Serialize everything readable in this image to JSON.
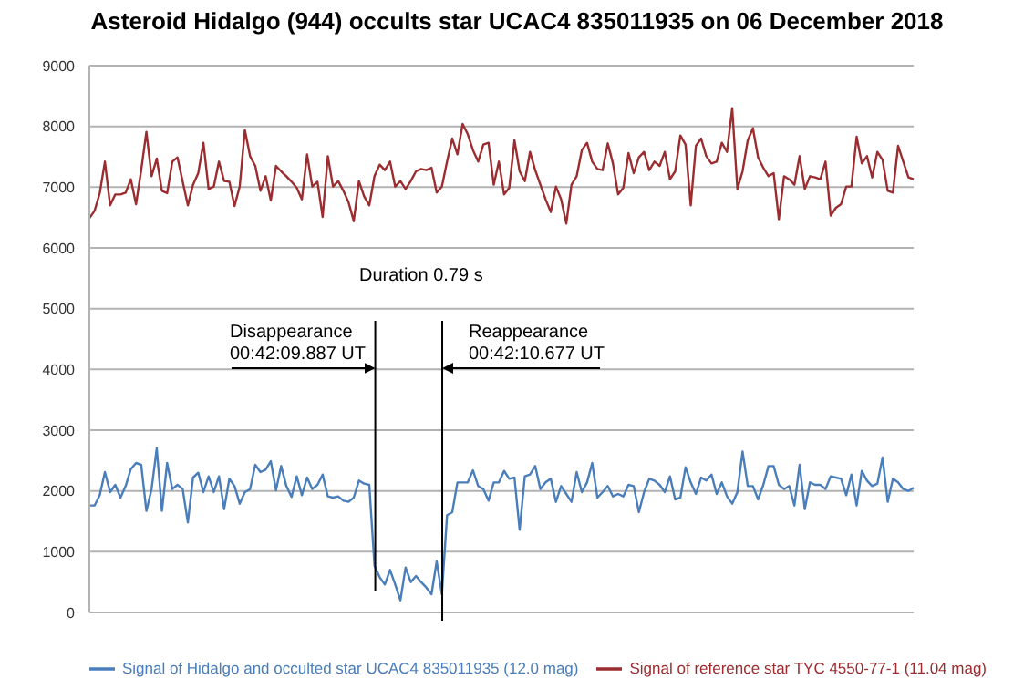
{
  "chart_data": {
    "type": "line",
    "title": "Asteroid Hidalgo (944) occults star UCAC4 835011935 on 06 December 2018",
    "categories": [
      null,
      null,
      null,
      null,
      null,
      null,
      null,
      null,
      null,
      null,
      null,
      null,
      null,
      null,
      null,
      null,
      null,
      null,
      null,
      null,
      null,
      null,
      null,
      null,
      null,
      null,
      null,
      null,
      null,
      null,
      null,
      null,
      null,
      null,
      null,
      null,
      null,
      null,
      null,
      null,
      null,
      null,
      null,
      null,
      null,
      null,
      null,
      null,
      null,
      null,
      null,
      null,
      null,
      null,
      null,
      null,
      null,
      null,
      null,
      null,
      null,
      null,
      null,
      null,
      null,
      null,
      null,
      null,
      null,
      null,
      null,
      null,
      null,
      null,
      null,
      null,
      null,
      null,
      null,
      null,
      null,
      null,
      null,
      null,
      null,
      null,
      null,
      null,
      null,
      null,
      null,
      null,
      null,
      null,
      null,
      null,
      null,
      null,
      null,
      null,
      null,
      null,
      null,
      null,
      null,
      null,
      null,
      null,
      null,
      null,
      null,
      null,
      null,
      null,
      null,
      null,
      null,
      null,
      null,
      null,
      null,
      null,
      null,
      null,
      null,
      null,
      null,
      null,
      null,
      null,
      null,
      null,
      null,
      null,
      null,
      null,
      null,
      null,
      null,
      null,
      null,
      null,
      null,
      null,
      null,
      null,
      null,
      null,
      null,
      null,
      null,
      null,
      null,
      null,
      null,
      null,
      null,
      null,
      null,
      null
    ],
    "series": [
      {
        "name": "Signal of Hidalgo and occulted star UCAC4 835011935 (12.0 mag)",
        "color": "#4a7ebb",
        "values": [
          1760,
          1760,
          1930,
          2310,
          1980,
          2100,
          1890,
          2080,
          2360,
          2460,
          2430,
          1670,
          2030,
          2700,
          1670,
          2460,
          2030,
          2100,
          2030,
          1480,
          2220,
          2300,
          1980,
          2240,
          1980,
          2240,
          1700,
          2200,
          2080,
          1790,
          1980,
          2030,
          2430,
          2310,
          2350,
          2490,
          2010,
          2410,
          2080,
          1900,
          2240,
          1930,
          2220,
          2030,
          2100,
          2270,
          1910,
          1890,
          1910,
          1840,
          1820,
          1890,
          2170,
          2120,
          2100,
          770,
          580,
          460,
          700,
          460,
          200,
          740,
          500,
          600,
          500,
          410,
          300,
          840,
          300,
          1600,
          1650,
          2140,
          2140,
          2140,
          2340,
          2080,
          2030,
          1840,
          2140,
          2140,
          2330,
          2200,
          2220,
          1360,
          2240,
          2270,
          2410,
          2030,
          2140,
          2200,
          1820,
          2080,
          1950,
          1820,
          2310,
          1980,
          2140,
          2460,
          1890,
          1980,
          2080,
          1910,
          1950,
          1910,
          2100,
          2080,
          1650,
          1980,
          2200,
          2170,
          2100,
          1980,
          2240,
          1860,
          1890,
          2390,
          2140,
          1950,
          2220,
          2170,
          2270,
          1950,
          2140,
          1910,
          1790,
          1980,
          2650,
          2080,
          2080,
          1860,
          2100,
          2410,
          2410,
          2100,
          2030,
          2080,
          1760,
          2430,
          1700,
          2140,
          2100,
          2100,
          2030,
          2240,
          2220,
          2200,
          1930,
          2270,
          1760,
          2330,
          2170,
          2080,
          2120,
          2550,
          1820,
          2200,
          2140,
          2030,
          2000,
          2050
        ]
      },
      {
        "name": "Signal of reference star TYC 4550-77-1 (11.04 mag)",
        "color": "#9b2d30",
        "values": [
          6490,
          6610,
          6900,
          7420,
          6700,
          6880,
          6880,
          6910,
          7130,
          6720,
          7280,
          7910,
          7180,
          7470,
          6940,
          6900,
          7420,
          7490,
          7090,
          6700,
          7040,
          7230,
          7730,
          6970,
          7010,
          7420,
          7100,
          7090,
          6690,
          7010,
          7940,
          7510,
          7350,
          6940,
          7180,
          6780,
          7350,
          7260,
          7180,
          7090,
          6990,
          6800,
          7540,
          7010,
          7090,
          6510,
          7510,
          7010,
          7100,
          6940,
          6750,
          6440,
          7100,
          6850,
          6700,
          7180,
          7370,
          7280,
          7420,
          7010,
          7100,
          6970,
          7100,
          7260,
          7300,
          7280,
          7320,
          6910,
          7010,
          7420,
          7800,
          7540,
          8040,
          7870,
          7610,
          7420,
          7700,
          7730,
          7040,
          7420,
          6880,
          6990,
          7770,
          7260,
          7100,
          7580,
          7280,
          7040,
          6800,
          6590,
          7010,
          6800,
          6400,
          7040,
          7180,
          7610,
          7730,
          7420,
          7300,
          7280,
          7720,
          7390,
          6880,
          6990,
          7560,
          7230,
          7490,
          7580,
          7280,
          7420,
          7350,
          7580,
          7130,
          7260,
          7850,
          7700,
          6700,
          7680,
          7800,
          7510,
          7390,
          7420,
          7730,
          7580,
          8300,
          6970,
          7260,
          7770,
          7970,
          7490,
          7320,
          7180,
          7230,
          6470,
          7180,
          7130,
          7040,
          7510,
          6970,
          7180,
          7160,
          7130,
          7420,
          6530,
          6660,
          6720,
          7010,
          7010,
          7830,
          7390,
          7510,
          7160,
          7580,
          7450,
          6940,
          6910,
          7680,
          7420,
          7160,
          7130
        ]
      }
    ],
    "ylim": [
      0,
      9000
    ],
    "yticks": [
      0,
      1000,
      2000,
      3000,
      4000,
      5000,
      6000,
      7000,
      8000,
      9000
    ],
    "grid": "y",
    "legend": "bottom",
    "annotations": [
      "Duration 0.79 s",
      "Disappearance\n00:42:09.887 UT",
      "Reappearance\n00:42:10.677 UT"
    ]
  }
}
